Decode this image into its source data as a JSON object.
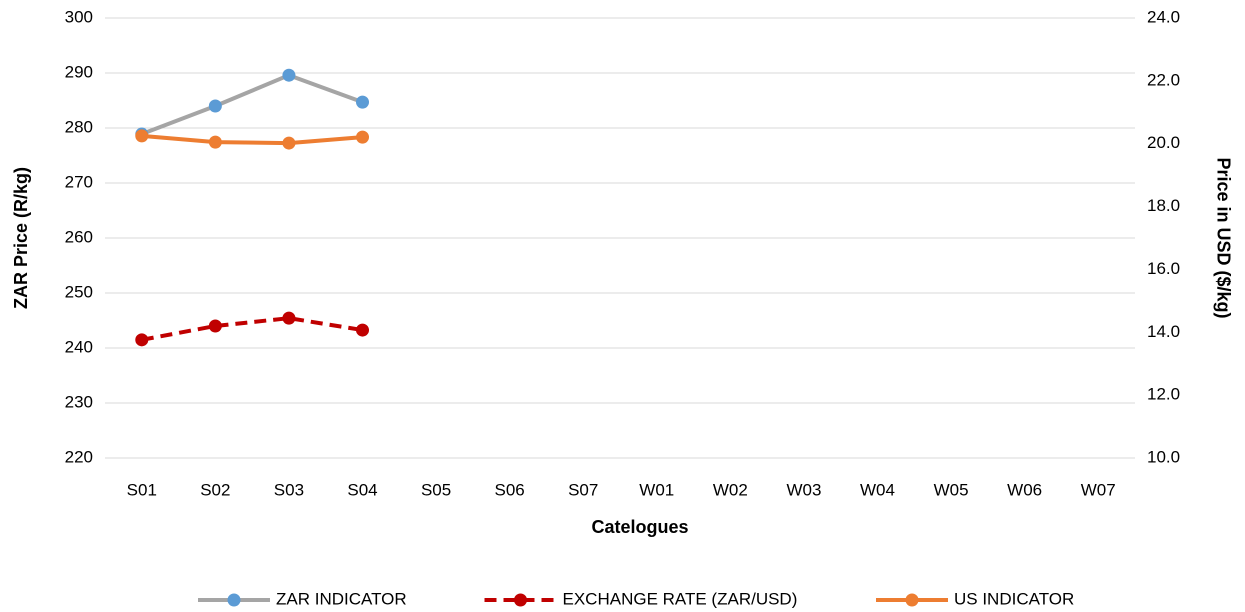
{
  "chart_data": {
    "type": "line",
    "categories": [
      "S01",
      "S02",
      "S03",
      "S04",
      "S05",
      "S06",
      "S07",
      "W01",
      "W02",
      "W03",
      "W04",
      "W05",
      "W06",
      "W07"
    ],
    "x_label": "Catelogues",
    "y_label": "ZAR Price (R/kg)",
    "y2_label": "Price in USD ($/kg)",
    "ylim": [
      220,
      300
    ],
    "yticks": [
      220,
      230,
      240,
      250,
      260,
      270,
      280,
      290,
      300
    ],
    "y2lim": [
      10,
      24
    ],
    "y2ticks": [
      {
        "value": 10,
        "label": "10.0"
      },
      {
        "value": 12,
        "label": "12.0"
      },
      {
        "value": 14,
        "label": "14.0"
      },
      {
        "value": 16,
        "label": "16.0"
      },
      {
        "value": 18,
        "label": "18.0"
      },
      {
        "value": 20,
        "label": "20.0"
      },
      {
        "value": 22,
        "label": "22.0"
      },
      {
        "value": 24,
        "label": "24.0"
      }
    ],
    "grid": true,
    "legend": "bottom",
    "series": [
      {
        "name": "ZAR INDICATOR",
        "color": "#a5a5a5",
        "marker_color": "#5b9bd5",
        "dashed": false,
        "values": [
          278.9,
          284.0,
          289.6,
          284.7,
          null,
          null,
          null,
          null,
          null,
          null,
          null,
          null,
          null,
          null
        ]
      },
      {
        "name": "EXCHANGE RATE (ZAR/USD)",
        "color": "#c00000",
        "marker_color": "#c00000",
        "dashed": true,
        "axis": "y2",
        "values": [
          13.76,
          14.2,
          14.45,
          14.07,
          null,
          null,
          null,
          null,
          null,
          null,
          null,
          null,
          null,
          null
        ]
      },
      {
        "name": "US INDICATOR",
        "color": "#ed7d31",
        "marker_color": "#ed7d31",
        "dashed": false,
        "axis": "y2",
        "values": [
          20.25,
          20.05,
          20.02,
          20.21,
          null,
          null,
          null,
          null,
          null,
          null,
          null,
          null,
          null,
          null
        ]
      }
    ]
  }
}
